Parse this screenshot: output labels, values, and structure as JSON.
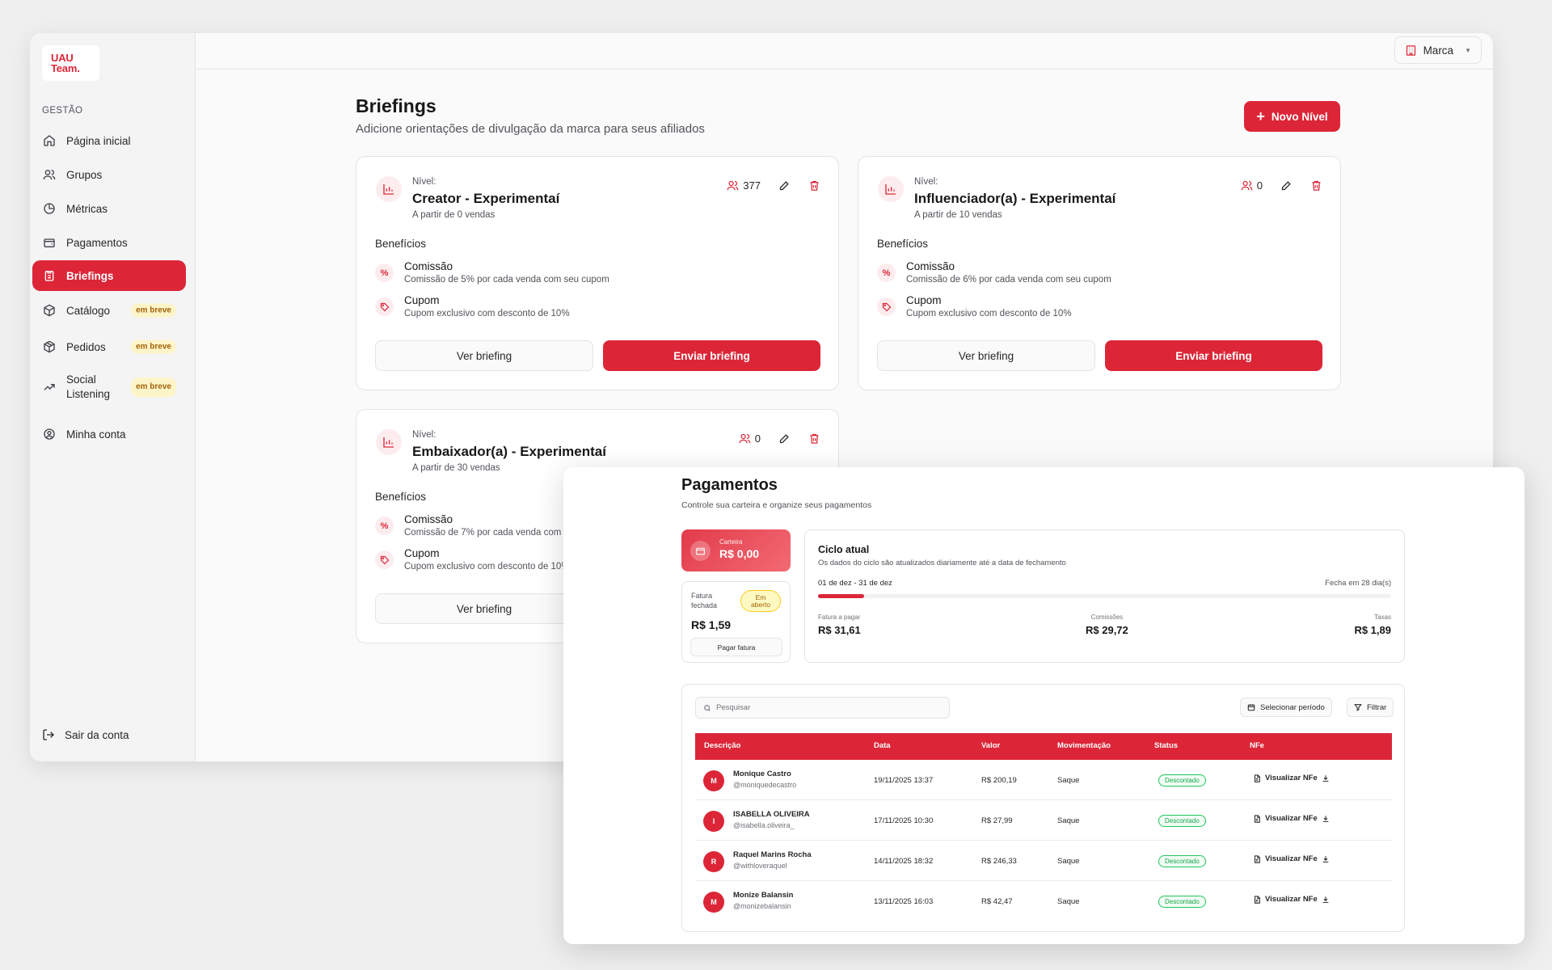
{
  "sidebar": {
    "logo_line1": "UAU",
    "logo_line2": "Team.",
    "section": "GESTÃO",
    "items": [
      {
        "label": "Página inicial"
      },
      {
        "label": "Grupos"
      },
      {
        "label": "Métricas"
      },
      {
        "label": "Pagamentos"
      },
      {
        "label": "Briefings"
      },
      {
        "label": "Catálogo",
        "badge": "em breve"
      },
      {
        "label": "Pedidos",
        "badge": "em breve"
      },
      {
        "label_1": "Social",
        "label_2": "Listening",
        "badge": "em breve"
      },
      {
        "label": "Minha conta"
      }
    ],
    "logout": "Sair da conta"
  },
  "topbar": {
    "brand": "Marca"
  },
  "page": {
    "title": "Briefings",
    "subtitle": "Adicione orientações de divulgação da marca para seus afiliados",
    "new_button": "Novo Nível"
  },
  "cards": [
    {
      "level_label": "Nível:",
      "title": "Creator - Experimentaí",
      "from": "A partir de 0 vendas",
      "users": "377",
      "benefits_label": "Benefícios",
      "b1_title": "Comissão",
      "b1_desc": "Comissão de 5% por cada venda com seu cupom",
      "b2_title": "Cupom",
      "b2_desc": "Cupom exclusivo com desconto de 10%",
      "view": "Ver briefing",
      "send": "Enviar briefing"
    },
    {
      "level_label": "Nível:",
      "title": "Influenciador(a) - Experimentaí",
      "from": "A partir de 10 vendas",
      "users": "0",
      "benefits_label": "Benefícios",
      "b1_title": "Comissão",
      "b1_desc": "Comissão de 6% por cada venda com seu cupom",
      "b2_title": "Cupom",
      "b2_desc": "Cupom exclusivo com desconto de 10%",
      "view": "Ver briefing",
      "send": "Enviar briefing"
    },
    {
      "level_label": "Nível:",
      "title": "Embaixador(a) - Experimentaí",
      "from": "A partir de 30 vendas",
      "users": "0",
      "benefits_label": "Benefícios",
      "b1_title": "Comissão",
      "b1_desc": "Comissão de 7% por cada venda com seu cupom",
      "b2_title": "Cupom",
      "b2_desc": "Cupom exclusivo com desconto de 10%",
      "view": "Ver briefing"
    }
  ],
  "payments": {
    "title": "Pagamentos",
    "subtitle": "Controle sua carteira e organize seus pagamentos",
    "wallet_label": "Carteira",
    "wallet_value": "R$ 0,00",
    "invoice_label": "Fatura fechada",
    "invoice_badge": "Em aberto",
    "invoice_value": "R$ 1,59",
    "pay_button": "Pagar fatura",
    "cycle_title": "Ciclo atual",
    "cycle_sub": "Os dados do ciclo são atualizados diariamente até a data de fechamento",
    "cycle_range": "01 de dez - 31 de dez",
    "cycle_close": "Fecha em 28 dia(s)",
    "cycle_progress": 0.08,
    "to_pay_label": "Fatura a pagar",
    "to_pay_value": "R$ 31,61",
    "commissions_label": "Comissões",
    "commissions_value": "R$ 29,72",
    "fees_label": "Taxas",
    "fees_value": "R$ 1,89",
    "search_placeholder": "Pesquisar",
    "period_button": "Selecionar período",
    "filter_button": "Filtrar",
    "columns": [
      "Descrição",
      "Data",
      "Valor",
      "Movimentação",
      "Status",
      "NFe"
    ],
    "rows": [
      {
        "initial": "M",
        "name": "Monique Castro",
        "handle": "@moniquedecastro",
        "date": "19/11/2025 13:37",
        "value": "R$ 200,19",
        "move": "Saque",
        "status": "Descontado",
        "nfe": "Visualizar NFe"
      },
      {
        "initial": "I",
        "name": "ISABELLA OLIVEIRA",
        "handle": "@isabella.oliveira_",
        "date": "17/11/2025 10:30",
        "value": "R$ 27,99",
        "move": "Saque",
        "status": "Descontado",
        "nfe": "Visualizar NFe"
      },
      {
        "initial": "R",
        "name": "Raquel Marins Rocha",
        "handle": "@withloveraquel",
        "date": "14/11/2025 18:32",
        "value": "R$ 246,33",
        "move": "Saque",
        "status": "Descontado",
        "nfe": "Visualizar NFe"
      },
      {
        "initial": "M",
        "name": "Monize Balansin",
        "handle": "@monizebalansin",
        "date": "13/11/2025 16:03",
        "value": "R$ 42,47",
        "move": "Saque",
        "status": "Descontado",
        "nfe": "Visualizar NFe"
      }
    ]
  }
}
